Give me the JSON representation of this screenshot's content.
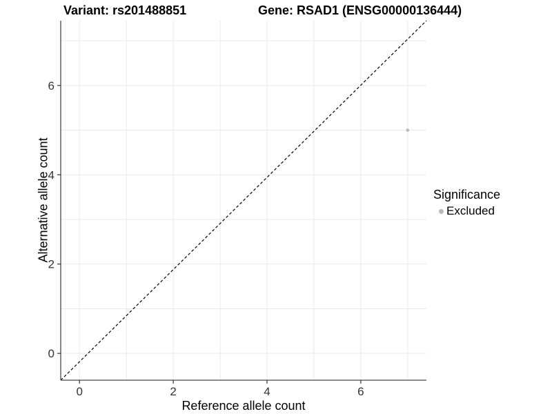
{
  "chart_data": {
    "type": "scatter",
    "title_left": "Variant: rs201488851",
    "title_right": "Gene: RSAD1 (ENSG00000136444)",
    "xlabel": "Reference allele count",
    "ylabel": "Alternative allele count",
    "xlim": [
      -0.4,
      7.4
    ],
    "ylim": [
      -0.6,
      7.45
    ],
    "xticks": [
      0,
      2,
      4,
      6
    ],
    "yticks": [
      0,
      2,
      4,
      6
    ],
    "gridlines": [
      0,
      1,
      2,
      3,
      4,
      5,
      6,
      7
    ],
    "identity_line": {
      "type": "y=x",
      "style": "dashed",
      "color": "#000000"
    },
    "series": [
      {
        "name": "Excluded",
        "color": "#b9b9b9",
        "points": [
          [
            7,
            5
          ]
        ]
      }
    ],
    "legend": {
      "title": "Significance",
      "position": "right",
      "entries": [
        {
          "label": "Excluded",
          "color": "#b9b9b9"
        }
      ]
    },
    "colors": {
      "background": "#ffffff",
      "grid": "#e9e9e9",
      "axis": "#474747",
      "tick": "#333333",
      "tick_label": "#333333"
    }
  }
}
